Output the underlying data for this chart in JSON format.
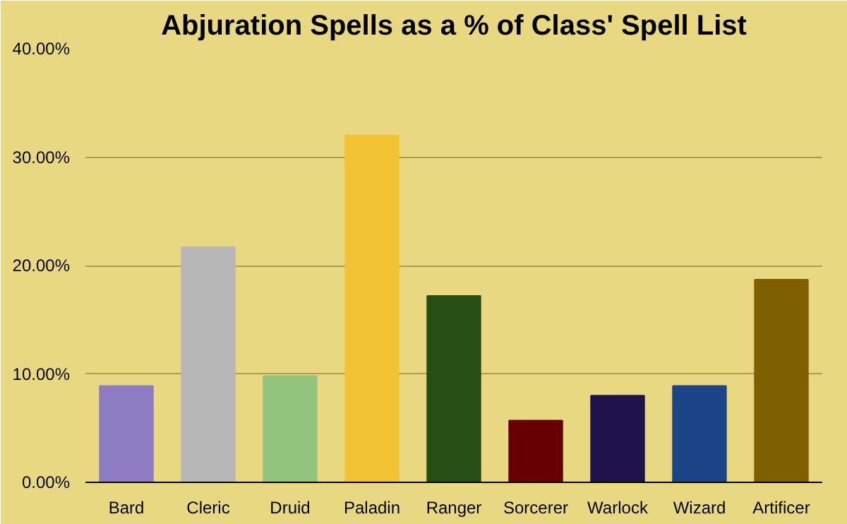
{
  "chart_data": {
    "type": "bar",
    "title": "Abjuration Spells as a % of Class' Spell List",
    "categories": [
      "Bard",
      "Cleric",
      "Druid",
      "Paladin",
      "Ranger",
      "Sorcerer",
      "Warlock",
      "Wizard",
      "Artificer"
    ],
    "values": [
      8.9,
      21.7,
      9.8,
      32.0,
      17.2,
      5.7,
      8.0,
      8.9,
      18.7
    ],
    "colors": [
      "#8e7cc3",
      "#b7b7b7",
      "#93c47d",
      "#f1c232",
      "#274e13",
      "#660000",
      "#20124d",
      "#1c4587",
      "#7f6000"
    ],
    "ylim": [
      0,
      40
    ],
    "yticks": [
      {
        "value": 0,
        "label": "0.00%"
      },
      {
        "value": 10,
        "label": "10.00%"
      },
      {
        "value": 20,
        "label": "20.00%"
      },
      {
        "value": 30,
        "label": "30.00%"
      },
      {
        "value": 40,
        "label": "40.00%"
      }
    ],
    "grid": "y"
  }
}
